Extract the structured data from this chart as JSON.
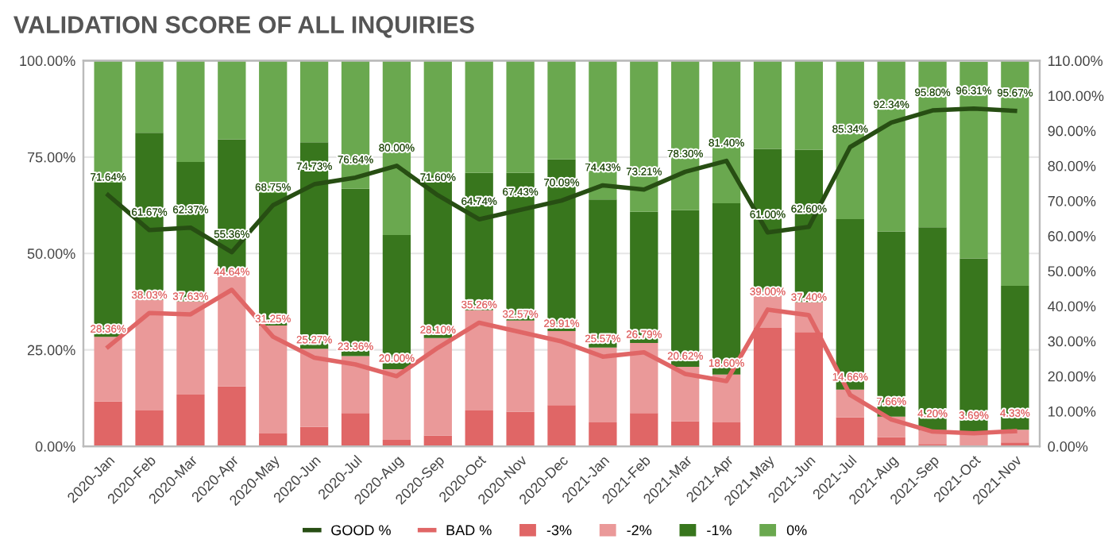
{
  "chart_data": {
    "type": "bar",
    "title": "VALIDATION SCORE OF ALL INQUIRIES",
    "stacked": true,
    "legend": "bottom",
    "grid": "y",
    "categories": [
      "2020-Jan",
      "2020-Feb",
      "2020-Mar",
      "2020-Apr",
      "2020-May",
      "2020-Jun",
      "2020-Jul",
      "2020-Aug",
      "2020-Sep",
      "2020-Oct",
      "2020-Nov",
      "2020-Dec",
      "2021-Jan",
      "2021-Feb",
      "2021-Mar",
      "2021-Apr",
      "2021-May",
      "2021-Jun",
      "2021-Jul",
      "2021-Aug",
      "2021-Sep",
      "2021-Oct",
      "2021-Nov"
    ],
    "ylim": [
      0,
      100
    ],
    "yticks": [
      {
        "value": 0,
        "label": "0.00%"
      },
      {
        "value": 25,
        "label": "25.00%"
      },
      {
        "value": 50,
        "label": "50.00%"
      },
      {
        "value": 75,
        "label": "75.00%"
      },
      {
        "value": 100,
        "label": "100.00%"
      }
    ],
    "y2lim": [
      0,
      110
    ],
    "y2ticks": [
      {
        "value": 0,
        "label": "0.00%"
      },
      {
        "value": 10,
        "label": "10.00%"
      },
      {
        "value": 20,
        "label": "20.00%"
      },
      {
        "value": 30,
        "label": "30.00%"
      },
      {
        "value": 40,
        "label": "40.00%"
      },
      {
        "value": 50,
        "label": "50.00%"
      },
      {
        "value": 60,
        "label": "60.00%"
      },
      {
        "value": 70,
        "label": "70.00%"
      },
      {
        "value": 80,
        "label": "80.00%"
      },
      {
        "value": 90,
        "label": "90.00%"
      },
      {
        "value": 100,
        "label": "100.00%"
      },
      {
        "value": 110,
        "label": "110.00%"
      }
    ],
    "series": [
      {
        "name": "-3%",
        "color": "#e06666",
        "values": [
          11.6,
          9.3,
          13.4,
          15.5,
          3.3,
          5.0,
          8.6,
          1.7,
          2.8,
          9.3,
          9.0,
          10.7,
          6.2,
          8.6,
          6.5,
          6.2,
          30.7,
          29.6,
          7.5,
          2.4,
          0.6,
          null,
          1.0
        ]
      },
      {
        "name": "-2%",
        "color": "#ea9999",
        "values": [
          16.8,
          28.7,
          24.2,
          29.1,
          28.0,
          20.3,
          14.8,
          18.3,
          25.3,
          26.0,
          23.6,
          19.2,
          19.4,
          18.2,
          14.1,
          12.4,
          8.3,
          7.8,
          7.2,
          5.3,
          3.6,
          3.4,
          3.3
        ]
      },
      {
        "name": "-1%",
        "color": "#38761d",
        "values": [
          40.0,
          43.3,
          36.1,
          35.0,
          34.4,
          53.5,
          43.4,
          34.8,
          42.1,
          35.6,
          38.3,
          44.5,
          38.4,
          34.0,
          40.6,
          44.4,
          38.1,
          39.5,
          44.2,
          48.0,
          52.6,
          45.3,
          37.3
        ]
      },
      {
        "name": "0%",
        "color": "#6aa84f",
        "values": [
          31.6,
          18.7,
          26.3,
          20.4,
          34.3,
          21.2,
          33.2,
          45.2,
          29.8,
          29.1,
          29.1,
          25.6,
          36.0,
          39.2,
          38.8,
          37.0,
          22.9,
          23.1,
          41.1,
          44.3,
          43.2,
          51.0,
          58.4
        ]
      },
      {
        "name": "GOOD %",
        "type": "line",
        "axis": "y2",
        "color": "#274e13",
        "values": [
          71.64,
          61.67,
          62.37,
          55.36,
          68.75,
          74.73,
          76.64,
          80.0,
          71.6,
          64.74,
          67.43,
          70.09,
          74.43,
          73.21,
          78.3,
          81.4,
          61.0,
          62.6,
          85.34,
          92.34,
          95.8,
          96.31,
          95.67
        ],
        "value_labels": [
          "71.64%",
          "61.67%",
          "62.37%",
          "55.36%",
          "68.75%",
          "74.73%",
          "76.64%",
          "80.00%",
          "71.60%",
          "64.74%",
          "67.43%",
          "70.09%",
          "74.43%",
          "73.21%",
          "78.30%",
          "81.40%",
          "61.00%",
          "62.60%",
          "85.34%",
          "92.34%",
          "95.80%",
          "96.31%",
          "95.67%"
        ]
      },
      {
        "name": "BAD %",
        "type": "line",
        "axis": "y2",
        "color": "#e06666",
        "values": [
          28.36,
          38.03,
          37.63,
          44.64,
          31.25,
          25.27,
          23.36,
          20.0,
          28.1,
          35.26,
          32.57,
          29.91,
          25.57,
          26.79,
          20.62,
          18.6,
          39.0,
          37.4,
          14.66,
          7.66,
          4.2,
          3.69,
          4.33
        ],
        "value_labels": [
          "28.36%",
          "38.03%",
          "37.63%",
          "44.64%",
          "31.25%",
          "25.27%",
          "23.36%",
          "20.00%",
          "28.10%",
          "35.26%",
          "32.57%",
          "29.91%",
          "25.57%",
          "26.79%",
          "20.62%",
          "18.60%",
          "39.00%",
          "37.40%",
          "14.66%",
          "7.66%",
          "4.20%",
          "3.69%",
          "4.33%"
        ]
      }
    ]
  }
}
